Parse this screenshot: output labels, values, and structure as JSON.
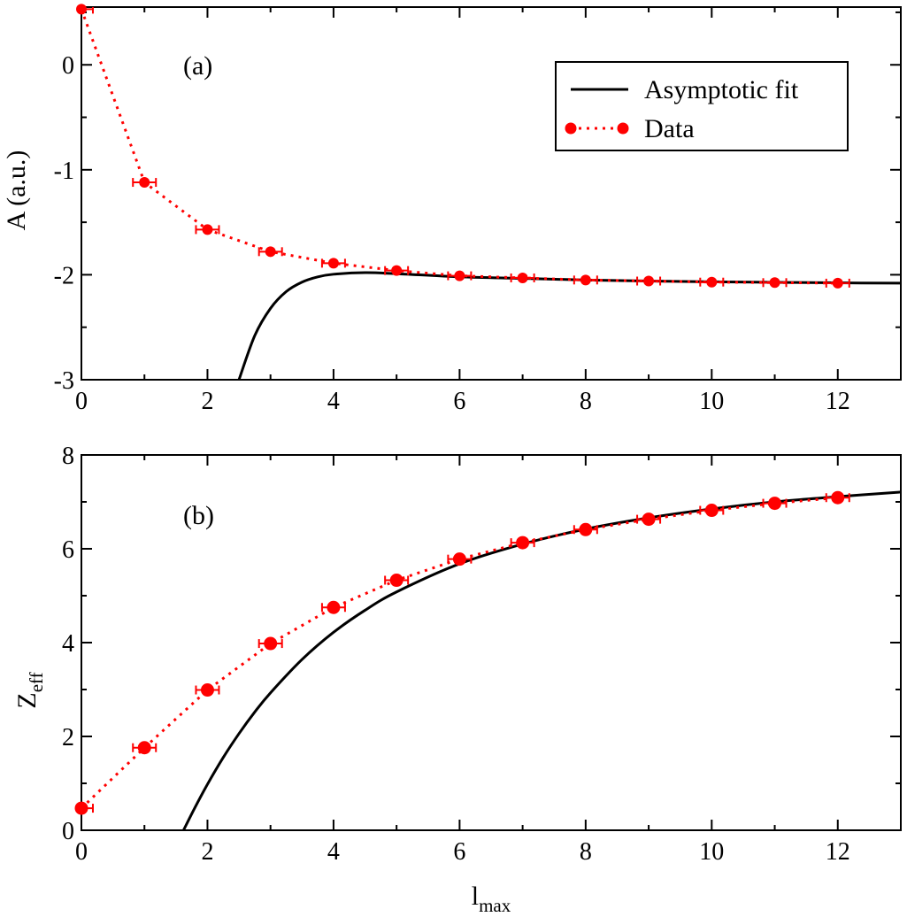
{
  "chart_data": [
    {
      "type": "line",
      "panel_label": "(a)",
      "xlabel": "",
      "ylabel": "A (a.u.)",
      "xlim": [
        0,
        13
      ],
      "ylim": [
        -3,
        0.55
      ],
      "x_ticks": [
        0,
        2,
        4,
        6,
        8,
        10,
        12
      ],
      "x_tick_labels": [
        "0",
        "2",
        "4",
        "6",
        "8",
        "10",
        "12"
      ],
      "y_ticks": [
        -3,
        -2,
        -1,
        0
      ],
      "y_tick_labels": [
        "-3",
        "-2",
        "-1",
        "0"
      ],
      "grid": false,
      "legend": {
        "placement": "top-right",
        "entries": [
          {
            "label": "Asymptotic fit",
            "style": "solid-line",
            "color": "#000000"
          },
          {
            "label": "Data",
            "style": "dotted-line-with-circles",
            "color": "#ff0000"
          }
        ]
      },
      "series": [
        {
          "name": "Data",
          "color": "#ff0000",
          "x": [
            0,
            1,
            2,
            3,
            4,
            5,
            6,
            7,
            8,
            9,
            10,
            11,
            12
          ],
          "y": [
            0.53,
            -1.12,
            -1.57,
            -1.78,
            -1.89,
            -1.96,
            -2.01,
            -2.03,
            -2.05,
            -2.06,
            -2.07,
            -2.075,
            -2.08
          ]
        },
        {
          "name": "Asymptotic fit",
          "color": "#000000",
          "x": [
            2.5,
            2.75,
            3.0,
            3.25,
            3.5,
            3.75,
            4.0,
            4.5,
            5.0,
            6.0,
            7.0,
            8.0,
            9.0,
            10.0,
            11.0,
            12.0,
            13.0
          ],
          "y": [
            -3.0,
            -2.58,
            -2.32,
            -2.16,
            -2.07,
            -2.02,
            -1.995,
            -1.98,
            -1.99,
            -2.02,
            -2.035,
            -2.05,
            -2.06,
            -2.067,
            -2.072,
            -2.077,
            -2.08
          ]
        }
      ]
    },
    {
      "type": "line",
      "panel_label": "(b)",
      "xlabel": "l",
      "xlabel_sub": "max",
      "ylabel": "Z",
      "ylabel_sub": "eff",
      "xlim": [
        0,
        13
      ],
      "ylim": [
        0,
        8
      ],
      "x_ticks": [
        0,
        2,
        4,
        6,
        8,
        10,
        12
      ],
      "x_tick_labels": [
        "0",
        "2",
        "4",
        "6",
        "8",
        "10",
        "12"
      ],
      "y_ticks": [
        0,
        2,
        4,
        6,
        8
      ],
      "y_tick_labels": [
        "0",
        "2",
        "4",
        "6",
        "8"
      ],
      "grid": false,
      "series": [
        {
          "name": "Data",
          "color": "#ff0000",
          "x": [
            0,
            1,
            2,
            3,
            4,
            5,
            6,
            7,
            8,
            9,
            10,
            11,
            12
          ],
          "y": [
            0.47,
            1.76,
            2.99,
            3.98,
            4.75,
            5.33,
            5.78,
            6.13,
            6.41,
            6.63,
            6.82,
            6.97,
            7.09
          ]
        },
        {
          "name": "Asymptotic fit",
          "color": "#000000",
          "x": [
            1.62,
            1.8,
            2.0,
            2.25,
            2.5,
            2.75,
            3.0,
            3.5,
            4.0,
            4.5,
            5.0,
            6.0,
            7.0,
            8.0,
            9.0,
            10.0,
            11.0,
            12.0,
            13.0
          ],
          "y": [
            0.0,
            0.48,
            0.98,
            1.55,
            2.06,
            2.52,
            2.93,
            3.64,
            4.22,
            4.69,
            5.08,
            5.68,
            6.1,
            6.42,
            6.66,
            6.85,
            7.0,
            7.11,
            7.21
          ]
        }
      ]
    }
  ]
}
